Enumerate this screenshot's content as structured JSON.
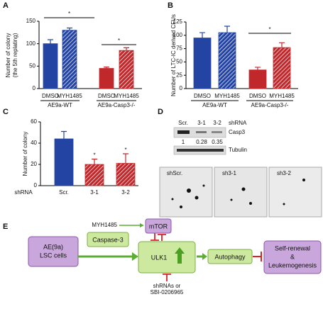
{
  "panels": [
    "A",
    "B",
    "C",
    "D",
    "E"
  ],
  "chart_data": [
    {
      "type": "bar",
      "ylabel": [
        "Number of colony",
        "(the 5th replating)"
      ],
      "categories": [
        "DMSO",
        "MYH1485",
        "DMSO",
        "MYH1485"
      ],
      "groups": [
        "AE9a-WT",
        "AE9a-Casp3-/-"
      ],
      "values": [
        100,
        130,
        45,
        85
      ],
      "errors": [
        9,
        5,
        3,
        6
      ],
      "colors": [
        "#2444a4",
        "#2444a4",
        "#c0282c",
        "#c0282c"
      ],
      "hatched": [
        false,
        true,
        false,
        true
      ],
      "ylim": [
        0,
        150
      ],
      "yticks": [
        0,
        50,
        100,
        150
      ],
      "brackets": [
        "*",
        "*"
      ]
    },
    {
      "type": "bar",
      "ylabel": [
        "Number of LTC-IC derived CFUs"
      ],
      "categories": [
        "DMSO",
        "MYH1485",
        "DMSO",
        "MYH1485"
      ],
      "groups": [
        "AE9a-WT",
        "AE9a-Casp3-/-"
      ],
      "values": [
        95,
        105,
        35,
        77
      ],
      "errors": [
        10,
        12,
        5,
        9
      ],
      "colors": [
        "#2444a4",
        "#2444a4",
        "#c0282c",
        "#c0282c"
      ],
      "hatched": [
        false,
        true,
        false,
        true
      ],
      "ylim": [
        0,
        125
      ],
      "yticks": [
        0,
        25,
        50,
        75,
        100,
        125
      ],
      "brackets": [
        "*"
      ]
    },
    {
      "type": "bar",
      "ylabel": [
        "Number of colony"
      ],
      "xlabel": "shRNA",
      "categories": [
        "Scr.",
        "3-1",
        "3-2"
      ],
      "values": [
        44,
        20,
        21
      ],
      "errors": [
        7,
        5,
        9
      ],
      "colors": [
        "#2444a4",
        "#c0282c",
        "#c0282c"
      ],
      "hatched": [
        false,
        true,
        true
      ],
      "ylim": [
        0,
        60
      ],
      "yticks": [
        0,
        20,
        40,
        60
      ],
      "bar_labels": [
        null,
        "*",
        "*"
      ]
    }
  ],
  "panel_d": {
    "lanes": [
      "Scr.",
      "3-1",
      "3-2"
    ],
    "lane_title": "shRNA",
    "bands": [
      "Casp3",
      "Tubulin"
    ],
    "quant": [
      "1",
      "0.28",
      "0.35"
    ],
    "images": [
      "shScr.",
      "sh3-1",
      "sh3-2"
    ]
  },
  "panel_e": {
    "source": [
      "AE(9a)",
      "LSC cells"
    ],
    "caspase": "Caspase-3",
    "activator": "MYH1485",
    "mtor": "mTOR",
    "ulk1": "ULK1",
    "inhibitor": [
      "shRNAs or",
      "SBI-0206965"
    ],
    "autophagy": "Autophagy",
    "outcome": [
      "Self-renewal",
      "&",
      "Leukemogenesis"
    ]
  }
}
